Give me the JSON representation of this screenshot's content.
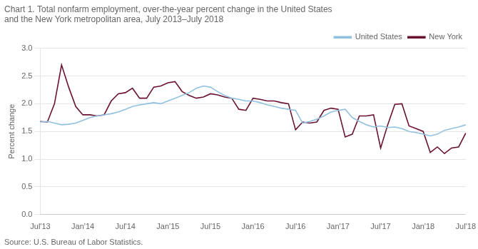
{
  "chart_data": {
    "type": "line",
    "title": [
      "Chart 1. Total nonfarm employment, over-the-year percent change in the United States",
      "and the New York metropolitan area, July 2013–July 2018"
    ],
    "ylabel": "Percent change",
    "annotations": [
      "Source: U.S. Bureau of Labor Statistics."
    ],
    "categories": [
      "Jul'13",
      null,
      null,
      null,
      null,
      null,
      "Jan'14",
      null,
      null,
      null,
      null,
      null,
      "Jul'14",
      null,
      null,
      null,
      null,
      null,
      "Jan'15",
      null,
      null,
      null,
      null,
      null,
      "Jul'15",
      null,
      null,
      null,
      null,
      null,
      "Jan'16",
      null,
      null,
      null,
      null,
      null,
      "Jul'16",
      null,
      null,
      null,
      null,
      null,
      "Jan'17",
      null,
      null,
      null,
      null,
      null,
      "Jul'17",
      null,
      null,
      null,
      null,
      null,
      "Jan'18",
      null,
      null,
      null,
      null,
      null,
      "Jul'18"
    ],
    "series": [
      {
        "name": "United States",
        "color": "#92c0e0",
        "values": [
          1.67,
          1.68,
          1.65,
          1.62,
          1.63,
          1.65,
          1.7,
          1.75,
          1.78,
          1.8,
          1.82,
          1.85,
          1.9,
          1.95,
          1.98,
          2.0,
          2.02,
          2.0,
          2.05,
          2.1,
          2.15,
          2.2,
          2.28,
          2.32,
          2.3,
          2.22,
          2.15,
          2.1,
          2.08,
          2.05,
          2.05,
          2.02,
          1.98,
          1.95,
          1.92,
          1.9,
          1.88,
          1.65,
          1.68,
          1.72,
          1.78,
          1.85,
          1.88,
          1.9,
          1.75,
          1.68,
          1.62,
          1.58,
          1.6,
          1.57,
          1.58,
          1.55,
          1.5,
          1.48,
          1.45,
          1.42,
          1.45,
          1.52,
          1.55,
          1.58,
          1.62
        ]
      },
      {
        "name": "New York",
        "color": "#6b1232",
        "values": [
          1.68,
          1.67,
          2.0,
          2.7,
          2.3,
          1.95,
          1.8,
          1.8,
          1.78,
          1.8,
          2.05,
          2.18,
          2.2,
          2.28,
          2.1,
          2.1,
          2.3,
          2.32,
          2.38,
          2.4,
          2.22,
          2.15,
          2.1,
          2.12,
          2.18,
          2.16,
          2.12,
          2.1,
          1.9,
          1.88,
          2.1,
          2.08,
          2.05,
          2.05,
          2.02,
          2.0,
          1.53,
          1.67,
          1.65,
          1.67,
          1.88,
          1.92,
          1.9,
          1.4,
          1.45,
          1.78,
          1.78,
          1.8,
          1.2,
          1.62,
          1.99,
          2.0,
          1.6,
          1.55,
          1.5,
          1.12,
          1.22,
          1.1,
          1.2,
          1.22,
          1.47
        ]
      }
    ],
    "ylim": [
      0.0,
      3.0
    ],
    "yticks": [
      {
        "value": 0,
        "label": "0.0"
      },
      0.5,
      {
        "value": 1,
        "label": "1.0"
      },
      1.5,
      {
        "value": 2,
        "label": "2.0"
      },
      2.5,
      {
        "value": 3,
        "label": "3.0"
      }
    ],
    "grid": "y",
    "legend": "upper right"
  }
}
